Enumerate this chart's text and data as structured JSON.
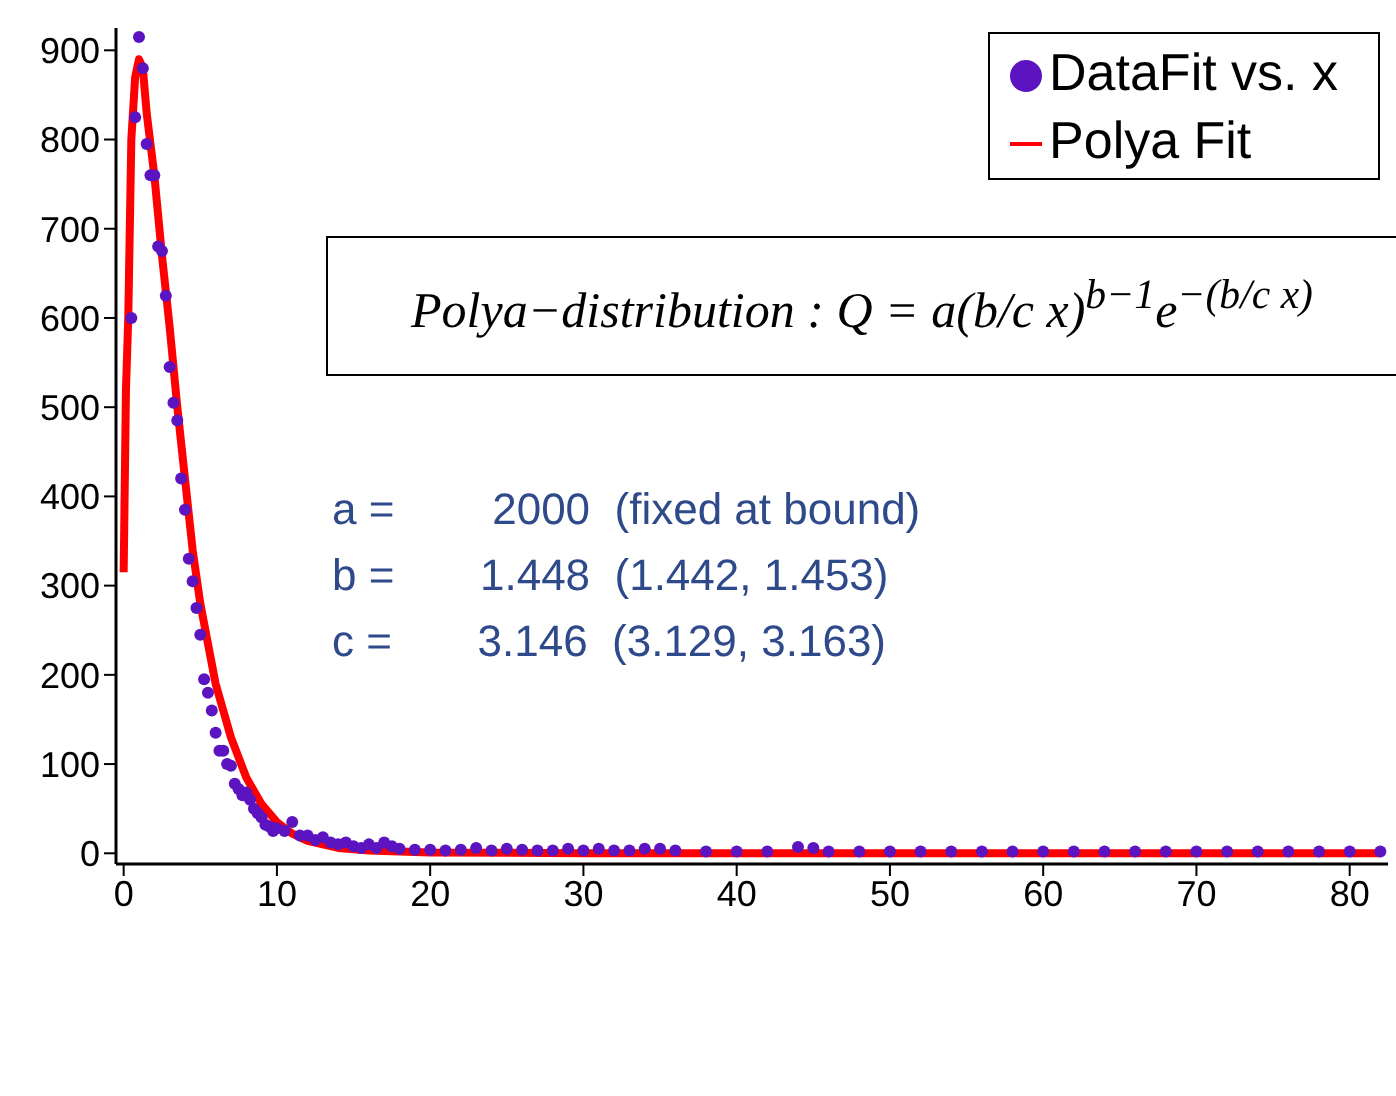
{
  "chart_data": {
    "type": "scatter",
    "xlim": [
      -0.5,
      82.5
    ],
    "xticks": [
      0,
      10,
      20,
      30,
      40,
      50,
      60,
      70,
      80
    ],
    "ylim": [
      -12,
      925
    ],
    "yticks": [
      0,
      100,
      200,
      300,
      400,
      500,
      600,
      700,
      800,
      900
    ],
    "grid": false,
    "legend": "top right",
    "annotations": [
      "Polya−distribution : Q = a(b/c x)$^{b−1}$e$^{−(b/c x)}$",
      "a =        2000  (fixed at bound)",
      "b =       1.448  (1.442, 1.453)",
      "c =       3.146  (3.129, 3.163)"
    ],
    "series": [
      {
        "name": "DataFit vs. x",
        "marker": "circle",
        "color": "#5b14c0",
        "x": [
          0.5,
          0.75,
          1,
          1.25,
          1.5,
          1.75,
          2,
          2.25,
          2.5,
          2.75,
          3,
          3.25,
          3.5,
          3.75,
          4,
          4.25,
          4.5,
          4.75,
          5,
          5.25,
          5.5,
          5.75,
          6,
          6.25,
          6.5,
          6.75,
          7,
          7.25,
          7.5,
          7.75,
          8,
          8.25,
          8.5,
          8.75,
          9,
          9.25,
          9.5,
          9.75,
          10,
          10.5,
          11,
          11.5,
          12,
          12.5,
          13,
          13.5,
          14,
          14.5,
          15,
          15.5,
          16,
          16.5,
          17,
          17.5,
          18,
          19,
          20,
          21,
          22,
          23,
          24,
          25,
          26,
          27,
          28,
          29,
          30,
          31,
          32,
          33,
          34,
          35,
          36,
          38,
          40,
          42,
          44,
          45,
          46,
          48,
          50,
          52,
          54,
          56,
          58,
          60,
          62,
          64,
          66,
          68,
          70,
          72,
          74,
          76,
          78,
          80,
          82
        ],
        "values": [
          600,
          825,
          915,
          880,
          795,
          760,
          760,
          680,
          675,
          625,
          545,
          505,
          485,
          420,
          385,
          330,
          305,
          275,
          245,
          195,
          180,
          160,
          135,
          115,
          115,
          100,
          98,
          78,
          72,
          65,
          68,
          60,
          50,
          45,
          40,
          32,
          30,
          25,
          28,
          25,
          35,
          20,
          20,
          15,
          18,
          12,
          10,
          12,
          8,
          6,
          10,
          6,
          12,
          8,
          5,
          4,
          4,
          3,
          4,
          6,
          3,
          5,
          4,
          3,
          3,
          5,
          3,
          5,
          3,
          3,
          5,
          5,
          3,
          2,
          2,
          2,
          7,
          6,
          2,
          2,
          2,
          2,
          2,
          2,
          2,
          2,
          2,
          2,
          2,
          2,
          2,
          2,
          2,
          2,
          2,
          2,
          2
        ]
      },
      {
        "name": "Polya Fit",
        "type": "line",
        "marker": "none",
        "line_style": "solid",
        "color": "#ff0000",
        "x": [
          0,
          0.15,
          0.3,
          0.5,
          0.75,
          1,
          1.25,
          1.5,
          2,
          2.5,
          3,
          3.5,
          4,
          4.5,
          5,
          6,
          7,
          8,
          9,
          10,
          11,
          12,
          14,
          16,
          20,
          30,
          82
        ],
        "values": [
          315,
          520,
          600,
          800,
          870,
          890,
          880,
          830,
          760,
          670,
          590,
          500,
          420,
          340,
          280,
          190,
          130,
          85,
          55,
          35,
          22,
          14,
          6,
          3,
          1,
          0,
          0
        ]
      }
    ]
  }
}
